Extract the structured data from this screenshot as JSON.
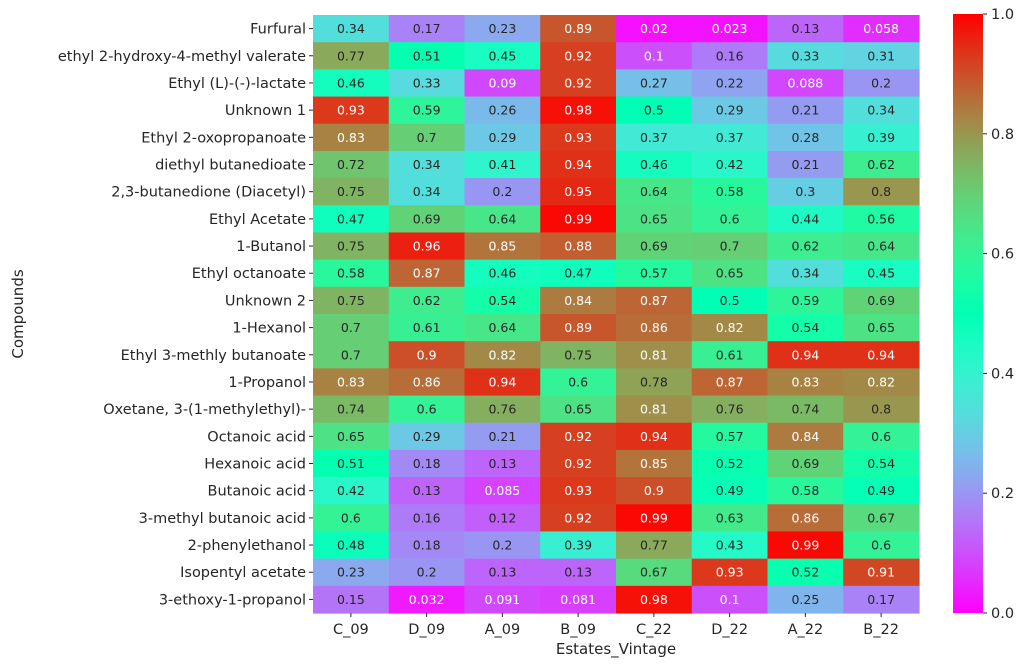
{
  "chart_data": {
    "type": "heatmap",
    "title": "",
    "xlabel": "Estates_Vintage",
    "ylabel": "Compounds",
    "columns": [
      "C_09",
      "D_09",
      "A_09",
      "B_09",
      "C_22",
      "D_22",
      "A_22",
      "B_22"
    ],
    "rows": [
      "Furfural",
      "ethyl 2-hydroxy-4-methyl valerate",
      "Ethyl (L)-(-)-lactate",
      "Unknown 1",
      "Ethyl 2-oxopropanoate",
      "diethyl butanedioate",
      "2,3-butanedione (Diacetyl)",
      "Ethyl Acetate",
      "1-Butanol",
      "Ethyl octanoate",
      "Unknown 2",
      "1-Hexanol",
      "Ethyl 3-methly butanoate",
      "1-Propanol",
      "Oxetane, 3-(1-methylethyl)-",
      "Octanoic acid",
      "Hexanoic acid",
      "Butanoic acid",
      "3-methyl butanoic acid",
      "2-phenylethanol",
      "Isopentyl acetate",
      "3-ethoxy-1-propanol"
    ],
    "values": [
      [
        0.34,
        0.17,
        0.23,
        0.89,
        0.02,
        0.023,
        0.13,
        0.058
      ],
      [
        0.77,
        0.51,
        0.45,
        0.92,
        0.1,
        0.16,
        0.33,
        0.31
      ],
      [
        0.46,
        0.33,
        0.09,
        0.92,
        0.27,
        0.22,
        0.088,
        0.2
      ],
      [
        0.93,
        0.59,
        0.26,
        0.98,
        0.5,
        0.29,
        0.21,
        0.34
      ],
      [
        0.83,
        0.7,
        0.29,
        0.93,
        0.37,
        0.37,
        0.28,
        0.39
      ],
      [
        0.72,
        0.34,
        0.41,
        0.94,
        0.46,
        0.42,
        0.21,
        0.62
      ],
      [
        0.75,
        0.34,
        0.2,
        0.95,
        0.64,
        0.58,
        0.3,
        0.8
      ],
      [
        0.47,
        0.69,
        0.64,
        0.99,
        0.65,
        0.6,
        0.44,
        0.56
      ],
      [
        0.75,
        0.96,
        0.85,
        0.88,
        0.69,
        0.7,
        0.62,
        0.64
      ],
      [
        0.58,
        0.87,
        0.46,
        0.47,
        0.57,
        0.65,
        0.34,
        0.45
      ],
      [
        0.75,
        0.62,
        0.54,
        0.84,
        0.87,
        0.5,
        0.59,
        0.69
      ],
      [
        0.7,
        0.61,
        0.64,
        0.89,
        0.86,
        0.82,
        0.54,
        0.65
      ],
      [
        0.7,
        0.9,
        0.82,
        0.75,
        0.81,
        0.61,
        0.94,
        0.94
      ],
      [
        0.83,
        0.86,
        0.94,
        0.6,
        0.78,
        0.87,
        0.83,
        0.82
      ],
      [
        0.74,
        0.6,
        0.76,
        0.65,
        0.81,
        0.76,
        0.74,
        0.8
      ],
      [
        0.65,
        0.29,
        0.21,
        0.92,
        0.94,
        0.57,
        0.84,
        0.6
      ],
      [
        0.51,
        0.18,
        0.13,
        0.92,
        0.85,
        0.52,
        0.69,
        0.54
      ],
      [
        0.42,
        0.13,
        0.085,
        0.93,
        0.9,
        0.49,
        0.58,
        0.49
      ],
      [
        0.6,
        0.16,
        0.12,
        0.92,
        0.99,
        0.63,
        0.86,
        0.67
      ],
      [
        0.48,
        0.18,
        0.2,
        0.39,
        0.77,
        0.43,
        0.99,
        0.6
      ],
      [
        0.23,
        0.2,
        0.13,
        0.13,
        0.67,
        0.93,
        0.52,
        0.91
      ],
      [
        0.15,
        0.032,
        0.091,
        0.081,
        0.98,
        0.1,
        0.25,
        0.17
      ]
    ],
    "colormap": "rainbow",
    "vmin": 0.0,
    "vmax": 1.0,
    "annotated": true,
    "colorbar": {
      "ticks": [
        0.0,
        0.2,
        0.4,
        0.6,
        0.8,
        1.0
      ],
      "tick_labels": [
        "0.0",
        "0.2",
        "0.4",
        "0.6",
        "0.8",
        "1.0"
      ],
      "placement": "right"
    },
    "grid": false
  }
}
